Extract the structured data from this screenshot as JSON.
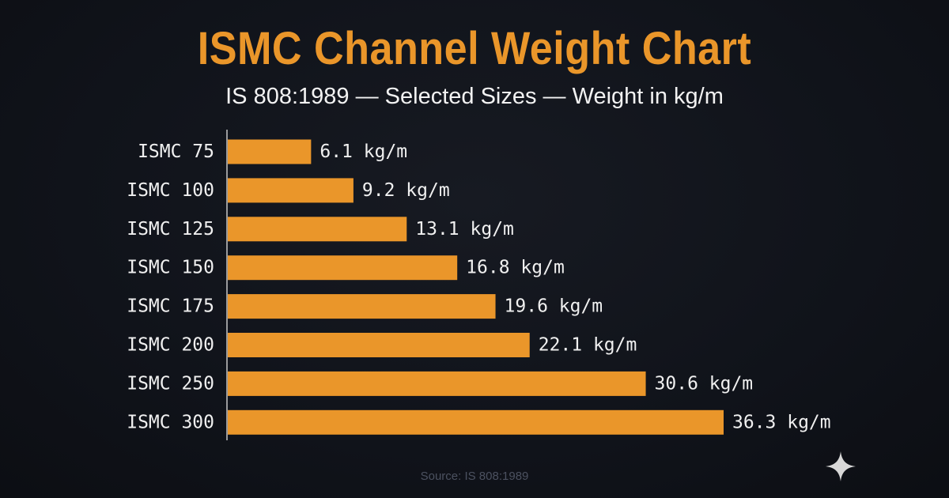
{
  "chart_data": {
    "type": "bar",
    "orientation": "horizontal",
    "title": "ISMC Channel Weight Chart",
    "subtitle": "IS 808:1989 — Selected Sizes — Weight in kg/m",
    "categories": [
      "ISMC 75",
      "ISMC 100",
      "ISMC 125",
      "ISMC 150",
      "ISMC 175",
      "ISMC 200",
      "ISMC 250",
      "ISMC 300"
    ],
    "values": [
      6.1,
      9.2,
      13.1,
      16.8,
      19.6,
      22.1,
      30.6,
      36.3
    ],
    "value_suffix": " kg/m",
    "xlim": [
      0,
      36.3
    ],
    "grid": false,
    "bar_color": "#ea962a",
    "label_color": "#f0f0f0"
  },
  "source": "Source: IS 808:1989",
  "background_color": "#10131a",
  "icons": {
    "sparkle": "sparkle-icon"
  }
}
